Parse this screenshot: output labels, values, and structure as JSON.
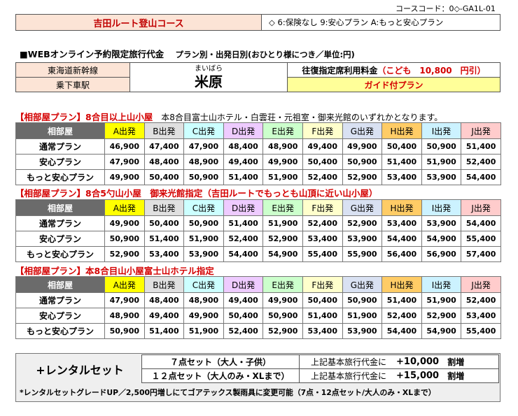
{
  "course_code": "コースコード：0◇-GA1L-01",
  "course_name": "吉田ルート登山コース",
  "legend_note": "◇ 6:保険なし 9:安心プラン A:もっと安心プラン",
  "price_heading": "■WEBオンライン予約限定旅行代金",
  "price_subheading": "プラン別・出発日別(おひとり様につき／単位:円)",
  "line_label": "東海道新幹線",
  "station_label": "乗下車駅",
  "station_furigana": "まいばら",
  "station_name": "米原",
  "seat_label": "往復指定席利用料金",
  "child_fare": "（こども　10,800　円引）",
  "guide_plan": "ガイド付プラン",
  "colors": {
    "course_name_bg": "#fce4d6",
    "header_gray": "#6b6b6b",
    "guide_bg": "#ffff99",
    "accent_red": "#d40000"
  },
  "departures": [
    {
      "label": "A出発",
      "color": "#ffff00"
    },
    {
      "label": "B出発",
      "color": "#e0e0e0"
    },
    {
      "label": "C出発",
      "color": "#ccffff"
    },
    {
      "label": "D出発",
      "color": "#eecbff"
    },
    {
      "label": "E出発",
      "color": "#ccffcc"
    },
    {
      "label": "F出発",
      "color": "#ffffcc"
    },
    {
      "label": "G出発",
      "color": "#d9e1f2"
    },
    {
      "label": "H出発",
      "color": "#ffcc66"
    },
    {
      "label": "I出発",
      "color": "#ccf2ff"
    },
    {
      "label": "J出発",
      "color": "#ffcccc"
    }
  ],
  "room_header": "相部屋",
  "sections": [
    {
      "title_red": "【相部屋プラン】8合目以上山小屋",
      "title_black": "　本8合目富士山ホテル・白雲荘・元祖室・御来光館のいずれかとなります。",
      "rows": [
        {
          "plan": "通常プラン",
          "prices": [
            "46,900",
            "47,400",
            "47,900",
            "48,400",
            "48,900",
            "49,400",
            "49,900",
            "50,400",
            "50,900",
            "51,400"
          ]
        },
        {
          "plan": "安心プラン",
          "prices": [
            "47,900",
            "48,400",
            "48,900",
            "49,400",
            "49,900",
            "50,400",
            "50,900",
            "51,400",
            "51,900",
            "52,400"
          ]
        },
        {
          "plan": "もっと安心プラン",
          "prices": [
            "49,900",
            "50,400",
            "50,900",
            "51,400",
            "51,900",
            "52,400",
            "52,900",
            "53,400",
            "53,900",
            "54,400"
          ]
        }
      ]
    },
    {
      "title_red": "【相部屋プラン】8合5勺山小屋　御来光館指定（吉田ルートでもっとも山頂に近い山小屋）",
      "title_black": "",
      "rows": [
        {
          "plan": "通常プラン",
          "prices": [
            "49,900",
            "50,400",
            "50,900",
            "51,400",
            "51,900",
            "52,400",
            "52,900",
            "53,400",
            "53,900",
            "54,400"
          ]
        },
        {
          "plan": "安心プラン",
          "prices": [
            "50,900",
            "51,400",
            "51,900",
            "52,400",
            "52,900",
            "53,400",
            "53,900",
            "54,400",
            "54,900",
            "55,400"
          ]
        },
        {
          "plan": "もっと安心プラン",
          "prices": [
            "52,900",
            "53,400",
            "53,900",
            "54,400",
            "54,900",
            "55,400",
            "55,900",
            "56,400",
            "56,900",
            "57,400"
          ]
        }
      ]
    },
    {
      "title_red": "【相部屋プラン】本8合目山小屋富士山ホテル指定",
      "title_black": "",
      "rows": [
        {
          "plan": "通常プラン",
          "prices": [
            "47,900",
            "48,400",
            "48,900",
            "49,400",
            "49,900",
            "50,400",
            "50,900",
            "51,400",
            "51,900",
            "52,400"
          ]
        },
        {
          "plan": "安心プラン",
          "prices": [
            "48,900",
            "49,400",
            "49,900",
            "50,400",
            "50,900",
            "51,400",
            "51,900",
            "52,400",
            "52,900",
            "53,400"
          ]
        },
        {
          "plan": "もっと安心プラン",
          "prices": [
            "50,900",
            "51,400",
            "51,900",
            "52,400",
            "52,900",
            "53,400",
            "53,900",
            "54,400",
            "54,900",
            "55,400"
          ]
        }
      ]
    }
  ],
  "rental": {
    "title": "+レンタルセット",
    "set7": "７点セット（大人・子供）",
    "set12": "１２点セット（大人のみ・XLまで）",
    "base_label": "上記基本旅行代金に",
    "surcharge7": "+10,000",
    "surcharge12": "+15,000",
    "surcharge_unit": "割増",
    "note": "*レンタルセットグレードUP／2,500円増しにてゴアテックス製雨具に変更可能（7点・12点セット/大人のみ・XLまで）"
  }
}
